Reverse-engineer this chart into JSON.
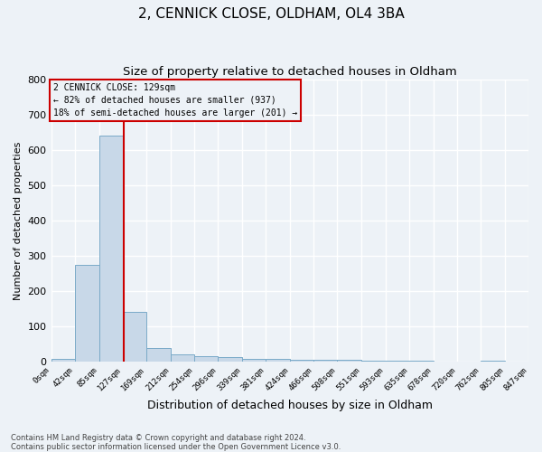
{
  "title": "2, CENNICK CLOSE, OLDHAM, OL4 3BA",
  "subtitle": "Size of property relative to detached houses in Oldham",
  "xlabel": "Distribution of detached houses by size in Oldham",
  "ylabel": "Number of detached properties",
  "footer_line1": "Contains HM Land Registry data © Crown copyright and database right 2024.",
  "footer_line2": "Contains public sector information licensed under the Open Government Licence v3.0.",
  "bin_edges": [
    0,
    42,
    85,
    127,
    169,
    212,
    254,
    296,
    339,
    381,
    424,
    466,
    508,
    551,
    593,
    635,
    678,
    720,
    762,
    805,
    847
  ],
  "bar_heights": [
    8,
    275,
    640,
    140,
    38,
    20,
    15,
    12,
    8,
    8,
    5,
    5,
    3,
    2,
    2,
    1,
    0,
    0,
    1,
    0
  ],
  "bar_color": "#c8d8e8",
  "bar_edge_color": "#7aaac8",
  "property_size": 129,
  "property_line_color": "#cc0000",
  "ylim": [
    0,
    800
  ],
  "annotation_line1": "2 CENNICK CLOSE: 129sqm",
  "annotation_line2": "← 82% of detached houses are smaller (937)",
  "annotation_line3": "18% of semi-detached houses are larger (201) →",
  "annotation_box_color": "#cc0000",
  "bg_color": "#edf2f7",
  "grid_color": "#ffffff",
  "title_fontsize": 11,
  "subtitle_fontsize": 9.5,
  "ylabel_fontsize": 8,
  "xlabel_fontsize": 9,
  "ytick_fontsize": 8,
  "xtick_fontsize": 6.5,
  "footer_fontsize": 6,
  "annotation_fontsize": 7
}
